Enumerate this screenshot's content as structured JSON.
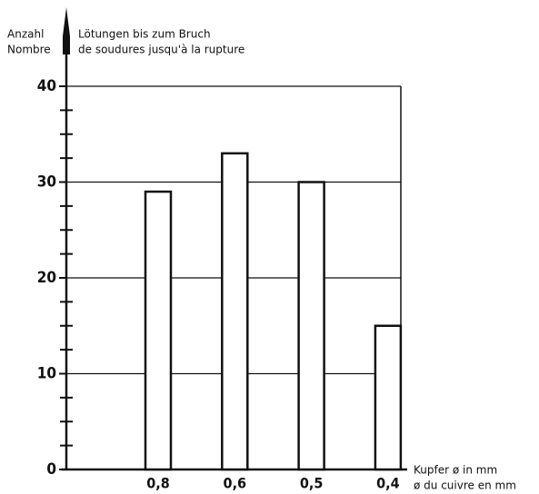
{
  "chart_data": {
    "type": "bar",
    "y_label_left": [
      "Anzahl",
      "Nombre"
    ],
    "y_label_right": [
      "Lötungen bis zum Bruch",
      "de soudures jusqu'à la rupture"
    ],
    "x_label": [
      "Kupfer ø in mm",
      "ø du cuivre en mm"
    ],
    "categories": [
      "0,8",
      "0,6",
      "0,5",
      "0,4"
    ],
    "values": [
      29,
      33,
      30,
      15
    ],
    "color": "#ffffff",
    "ylim": [
      0,
      40
    ],
    "yticks": [
      0,
      10,
      20,
      30,
      40
    ],
    "yminorticks": [
      2.5,
      5,
      7.5,
      12.5,
      15,
      17.5,
      22.5,
      25,
      27.5,
      32.5,
      35,
      37.5
    ],
    "grid": true
  }
}
